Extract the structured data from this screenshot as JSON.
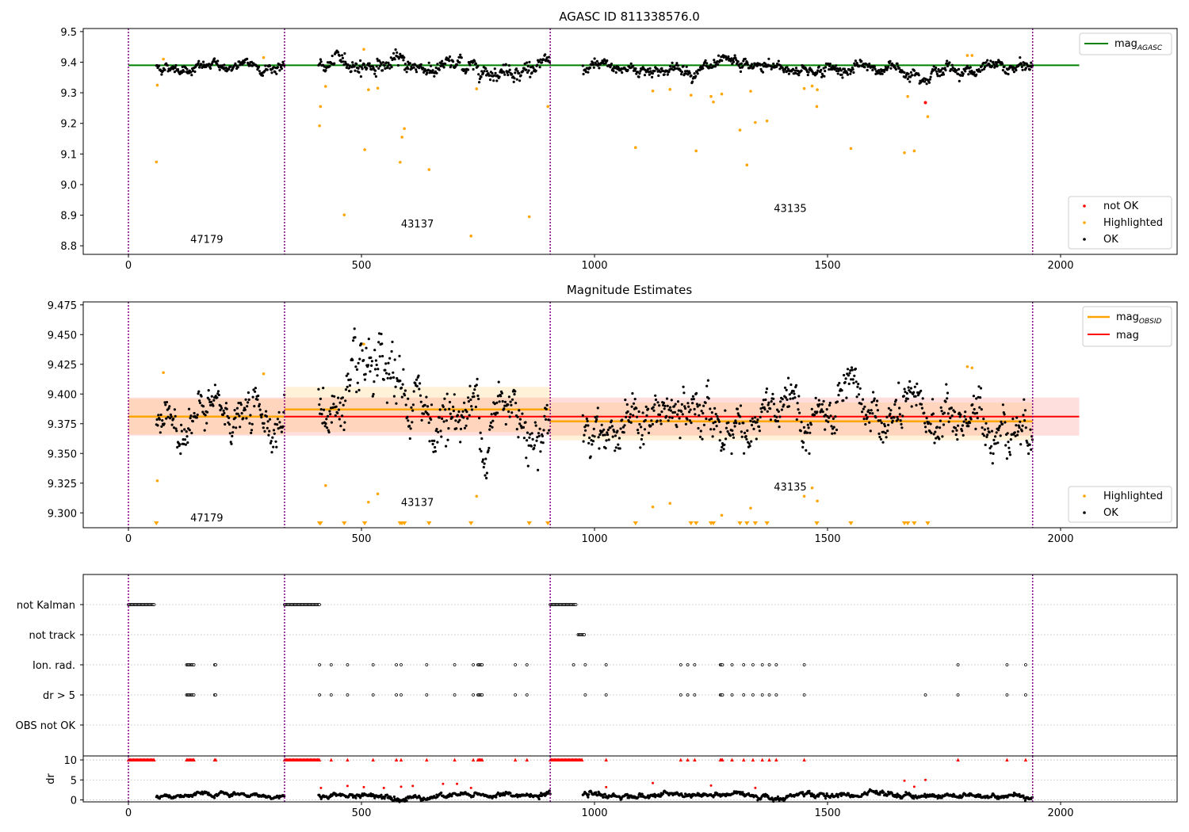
{
  "chart_data": [
    {
      "type": "scatter",
      "title": "AGASC ID 811338576.0",
      "xlim": [
        -97,
        2250
      ],
      "ylim": [
        8.772,
        9.51
      ],
      "xticks": [
        0,
        500,
        1000,
        1500,
        2000
      ],
      "xtick_labels": [
        "0",
        "500",
        "1000",
        "1500",
        "2000"
      ],
      "yticks": [
        8.8,
        8.9,
        9.0,
        9.1,
        9.2,
        9.3,
        9.4,
        9.5
      ],
      "ytick_labels": [
        "8.8",
        "8.9",
        "9.0",
        "9.1",
        "9.2",
        "9.3",
        "9.4",
        "9.5"
      ],
      "vlines": [
        0,
        335,
        905,
        1940
      ],
      "lines": [
        {
          "name": "mag$_{AGASC}$",
          "y": 9.39,
          "x_range": [
            0,
            2040
          ],
          "color": "#008000"
        }
      ],
      "legend_lines": {
        "label": "mag",
        "sub": "AGASC",
        "position": "top-right"
      },
      "legend_points": {
        "position": "bottom-right",
        "entries": [
          "not OK",
          "Highlighted",
          "OK"
        ]
      },
      "annotations": [
        {
          "text": "47179",
          "x": 168,
          "y": 8.81
        },
        {
          "text": "43137",
          "x": 620,
          "y": 8.86
        },
        {
          "text": "43135",
          "x": 1420,
          "y": 8.91
        }
      ],
      "ok_segments": [
        {
          "x": [
            60,
            335
          ],
          "mean": 9.385,
          "spread": 0.012
        },
        {
          "x": [
            408,
            600
          ],
          "mean": 9.395,
          "spread": 0.018
        },
        {
          "x": [
            600,
            905
          ],
          "mean": 9.385,
          "spread": 0.018
        },
        {
          "x": [
            975,
            1940
          ],
          "mean": 9.378,
          "spread": 0.014
        }
      ],
      "highlighted": [
        {
          "x": 60,
          "y": 9.074
        },
        {
          "x": 62,
          "y": 9.325
        },
        {
          "x": 75,
          "y": 9.41
        },
        {
          "x": 290,
          "y": 9.415
        },
        {
          "x": 410,
          "y": 9.192
        },
        {
          "x": 412,
          "y": 9.255
        },
        {
          "x": 423,
          "y": 9.321
        },
        {
          "x": 463,
          "y": 8.901
        },
        {
          "x": 505,
          "y": 9.442
        },
        {
          "x": 507,
          "y": 9.114
        },
        {
          "x": 515,
          "y": 9.31
        },
        {
          "x": 535,
          "y": 9.315
        },
        {
          "x": 583,
          "y": 9.073
        },
        {
          "x": 587,
          "y": 9.155
        },
        {
          "x": 592,
          "y": 9.183
        },
        {
          "x": 645,
          "y": 9.049
        },
        {
          "x": 735,
          "y": 8.832
        },
        {
          "x": 747,
          "y": 9.313
        },
        {
          "x": 860,
          "y": 8.895
        },
        {
          "x": 900,
          "y": 9.255
        },
        {
          "x": 1088,
          "y": 9.121
        },
        {
          "x": 1125,
          "y": 9.306
        },
        {
          "x": 1162,
          "y": 9.311
        },
        {
          "x": 1207,
          "y": 9.292
        },
        {
          "x": 1218,
          "y": 9.11
        },
        {
          "x": 1250,
          "y": 9.288
        },
        {
          "x": 1255,
          "y": 9.27
        },
        {
          "x": 1273,
          "y": 9.296
        },
        {
          "x": 1312,
          "y": 9.178
        },
        {
          "x": 1327,
          "y": 9.064
        },
        {
          "x": 1335,
          "y": 9.305
        },
        {
          "x": 1345,
          "y": 9.203
        },
        {
          "x": 1370,
          "y": 9.208
        },
        {
          "x": 1450,
          "y": 9.314
        },
        {
          "x": 1467,
          "y": 9.322
        },
        {
          "x": 1477,
          "y": 9.255
        },
        {
          "x": 1478,
          "y": 9.31
        },
        {
          "x": 1550,
          "y": 9.118
        },
        {
          "x": 1665,
          "y": 9.104
        },
        {
          "x": 1672,
          "y": 9.288
        },
        {
          "x": 1686,
          "y": 9.11
        },
        {
          "x": 1715,
          "y": 9.222
        },
        {
          "x": 1800,
          "y": 9.422
        },
        {
          "x": 1810,
          "y": 9.422
        }
      ],
      "not_ok": [
        {
          "x": 1710,
          "y": 9.268
        }
      ]
    },
    {
      "type": "scatter",
      "title": "Magnitude Estimates",
      "xlim": [
        -97,
        2250
      ],
      "ylim": [
        9.2875,
        9.4775
      ],
      "xticks": [
        0,
        500,
        1000,
        1500,
        2000
      ],
      "xtick_labels": [
        "0",
        "500",
        "1000",
        "1500",
        "2000"
      ],
      "yticks": [
        9.3,
        9.325,
        9.35,
        9.375,
        9.4,
        9.425,
        9.45,
        9.475
      ],
      "ytick_labels": [
        "9.300",
        "9.325",
        "9.350",
        "9.375",
        "9.400",
        "9.425",
        "9.450",
        "9.475"
      ],
      "vlines": [
        0,
        335,
        905,
        1940
      ],
      "mag_line": {
        "y": 9.381,
        "x_range": [
          0,
          2040
        ],
        "band": [
          9.365,
          9.397
        ],
        "color": "#ff0000"
      },
      "obsid_mag": [
        {
          "x_range": [
            0,
            335
          ],
          "y": 9.381,
          "band": [
            9.366,
            9.396
          ]
        },
        {
          "x_range": [
            335,
            905
          ],
          "y": 9.387,
          "band": [
            9.368,
            9.406
          ]
        },
        {
          "x_range": [
            905,
            1940
          ],
          "y": 9.377,
          "band": [
            9.361,
            9.393
          ]
        }
      ],
      "legend_lines": {
        "label_1": "mag",
        "sub_1": "OBSID",
        "label_2": "mag",
        "position": "top-right"
      },
      "legend_points": {
        "position": "bottom-right",
        "entries": [
          "Highlighted",
          "OK"
        ]
      },
      "annotations": [
        {
          "text": "47179",
          "x": 168,
          "y": 9.293
        },
        {
          "text": "43137",
          "x": 620,
          "y": 9.306
        },
        {
          "text": "43135",
          "x": 1420,
          "y": 9.319
        }
      ],
      "ok_segments": [
        {
          "x": [
            60,
            335
          ],
          "mean": 9.381,
          "spread": 0.012
        },
        {
          "x": [
            408,
            600
          ],
          "mean": 9.392,
          "spread": 0.018
        },
        {
          "x": [
            600,
            905
          ],
          "mean": 9.384,
          "spread": 0.018
        },
        {
          "x": [
            975,
            1940
          ],
          "mean": 9.377,
          "spread": 0.014
        }
      ],
      "highlighted": [
        {
          "x": 62,
          "y": 9.327
        },
        {
          "x": 75,
          "y": 9.418
        },
        {
          "x": 290,
          "y": 9.417
        },
        {
          "x": 423,
          "y": 9.323
        },
        {
          "x": 505,
          "y": 9.442
        },
        {
          "x": 515,
          "y": 9.309
        },
        {
          "x": 535,
          "y": 9.316
        },
        {
          "x": 747,
          "y": 9.314
        },
        {
          "x": 1125,
          "y": 9.305
        },
        {
          "x": 1162,
          "y": 9.308
        },
        {
          "x": 1273,
          "y": 9.298
        },
        {
          "x": 1335,
          "y": 9.304
        },
        {
          "x": 1450,
          "y": 9.314
        },
        {
          "x": 1467,
          "y": 9.321
        },
        {
          "x": 1478,
          "y": 9.31
        },
        {
          "x": 1800,
          "y": 9.423
        },
        {
          "x": 1810,
          "y": 9.422
        }
      ],
      "below_markers_x": [
        60,
        410,
        412,
        463,
        507,
        583,
        587,
        592,
        645,
        735,
        860,
        900,
        1088,
        1207,
        1218,
        1250,
        1255,
        1312,
        1327,
        1345,
        1370,
        1477,
        1550,
        1665,
        1672,
        1686,
        1715
      ]
    },
    {
      "type": "scatter",
      "title": "",
      "xlim": [
        -97,
        2250
      ],
      "rows": [
        "not Kalman",
        "not track",
        "Ion. rad.",
        "dr > 5",
        "OBS not OK"
      ],
      "vlines": [
        0,
        335,
        905,
        1940
      ],
      "flags": {
        "not Kalman": [
          [
            0,
            57
          ],
          [
            335,
            410
          ],
          [
            905,
            962
          ]
        ],
        "not track": [
          [
            965,
            980
          ]
        ],
        "Ion. rad.": [
          [
            125,
            142
          ],
          [
            185,
            188
          ],
          [
            410,
            410
          ],
          [
            435,
            435
          ],
          [
            470,
            470
          ],
          [
            525,
            525
          ],
          [
            575,
            577
          ],
          [
            585,
            585
          ],
          [
            640,
            640
          ],
          [
            700,
            700
          ],
          [
            740,
            742
          ],
          [
            750,
            760
          ],
          [
            830,
            830
          ],
          [
            855,
            855
          ],
          [
            955,
            955
          ],
          [
            980,
            980
          ],
          [
            1025,
            1025
          ],
          [
            1185,
            1185
          ],
          [
            1200,
            1200
          ],
          [
            1215,
            1215
          ],
          [
            1270,
            1275
          ],
          [
            1295,
            1295
          ],
          [
            1320,
            1320
          ],
          [
            1340,
            1340
          ],
          [
            1360,
            1360
          ],
          [
            1375,
            1375
          ],
          [
            1390,
            1390
          ],
          [
            1450,
            1450
          ],
          [
            1780,
            1780
          ],
          [
            1885,
            1885
          ],
          [
            1925,
            1925
          ]
        ],
        "dr > 5": [
          [
            125,
            142
          ],
          [
            185,
            188
          ],
          [
            410,
            410
          ],
          [
            435,
            435
          ],
          [
            470,
            470
          ],
          [
            525,
            525
          ],
          [
            575,
            577
          ],
          [
            585,
            585
          ],
          [
            640,
            640
          ],
          [
            700,
            700
          ],
          [
            740,
            742
          ],
          [
            750,
            760
          ],
          [
            830,
            830
          ],
          [
            855,
            855
          ],
          [
            980,
            980
          ],
          [
            1025,
            1025
          ],
          [
            1185,
            1185
          ],
          [
            1200,
            1200
          ],
          [
            1215,
            1215
          ],
          [
            1270,
            1275
          ],
          [
            1295,
            1295
          ],
          [
            1320,
            1320
          ],
          [
            1340,
            1340
          ],
          [
            1360,
            1360
          ],
          [
            1375,
            1375
          ],
          [
            1390,
            1390
          ],
          [
            1450,
            1450
          ],
          [
            1710,
            1710
          ],
          [
            1780,
            1780
          ],
          [
            1885,
            1885
          ],
          [
            1925,
            1925
          ]
        ],
        "OBS not OK": []
      }
    },
    {
      "type": "scatter",
      "title": "",
      "ylabel": "dr",
      "xlim": [
        -97,
        2250
      ],
      "ylim": [
        -0.5,
        11
      ],
      "xticks": [
        0,
        500,
        1000,
        1500,
        2000
      ],
      "xtick_labels": [
        "0",
        "500",
        "1000",
        "1500",
        "2000"
      ],
      "yticks": [
        0,
        5,
        10
      ],
      "ytick_labels": [
        "0",
        "5",
        "10"
      ],
      "vlines": [
        0,
        335,
        905,
        1940
      ],
      "ok_segments": [
        {
          "x": [
            60,
            335
          ],
          "mean": 1.0,
          "spread": 0.4
        },
        {
          "x": [
            408,
            905
          ],
          "mean": 1.1,
          "spread": 0.5
        },
        {
          "x": [
            975,
            1940
          ],
          "mean": 1.1,
          "spread": 0.5
        }
      ],
      "clipped_x": [
        [
          0,
          57
        ],
        [
          125,
          142
        ],
        [
          185,
          188
        ],
        [
          335,
          410
        ],
        [
          435,
          435
        ],
        [
          470,
          470
        ],
        [
          525,
          525
        ],
        [
          575,
          577
        ],
        [
          585,
          585
        ],
        [
          640,
          640
        ],
        [
          700,
          700
        ],
        [
          740,
          742
        ],
        [
          750,
          760
        ],
        [
          830,
          830
        ],
        [
          855,
          855
        ],
        [
          905,
          975
        ],
        [
          1025,
          1025
        ],
        [
          1185,
          1185
        ],
        [
          1200,
          1200
        ],
        [
          1215,
          1215
        ],
        [
          1270,
          1275
        ],
        [
          1295,
          1295
        ],
        [
          1320,
          1320
        ],
        [
          1340,
          1340
        ],
        [
          1360,
          1360
        ],
        [
          1375,
          1375
        ],
        [
          1390,
          1390
        ],
        [
          1450,
          1450
        ],
        [
          1780,
          1780
        ],
        [
          1885,
          1885
        ],
        [
          1925,
          1925
        ]
      ],
      "red_points": [
        {
          "x": 413,
          "y": 3.0
        },
        {
          "x": 470,
          "y": 3.5
        },
        {
          "x": 505,
          "y": 3.2
        },
        {
          "x": 548,
          "y": 3.0
        },
        {
          "x": 585,
          "y": 3.3
        },
        {
          "x": 610,
          "y": 3.5
        },
        {
          "x": 675,
          "y": 4.0
        },
        {
          "x": 705,
          "y": 4.0
        },
        {
          "x": 735,
          "y": 3.0
        },
        {
          "x": 1025,
          "y": 3.2
        },
        {
          "x": 1125,
          "y": 4.2
        },
        {
          "x": 1250,
          "y": 3.6
        },
        {
          "x": 1345,
          "y": 3.0
        },
        {
          "x": 1665,
          "y": 4.8
        },
        {
          "x": 1686,
          "y": 3.3
        },
        {
          "x": 1710,
          "y": 5.0
        }
      ]
    }
  ]
}
